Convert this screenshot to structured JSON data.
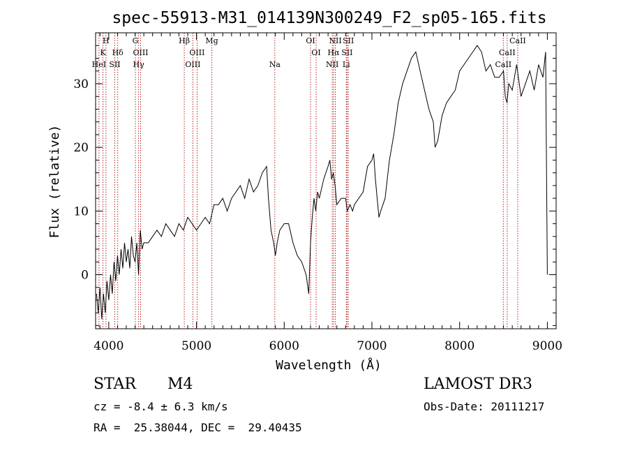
{
  "chart_data": {
    "type": "line",
    "title": "spec-55913-M31_014139N300249_F2_sp05-165.fits",
    "xlabel": "Wavelength (Å)",
    "ylabel": "Flux (relative)",
    "xlim": [
      3850,
      9100
    ],
    "ylim": [
      -8.5,
      38
    ],
    "xticks": [
      4000,
      5000,
      6000,
      7000,
      8000,
      9000
    ],
    "yticks": [
      0,
      10,
      20,
      30
    ],
    "grid": false,
    "line_color": "#000000",
    "marker_color": "#b22222",
    "series": [
      {
        "x": [
          3860,
          3880,
          3900,
          3920,
          3940,
          3960,
          3980,
          4000,
          4020,
          4040,
          4060,
          4080,
          4100,
          4120,
          4140,
          4160,
          4180,
          4200,
          4220,
          4240,
          4260,
          4280,
          4300,
          4320,
          4340,
          4360,
          4380,
          4400,
          4450,
          4500,
          4550,
          4600,
          4650,
          4700,
          4750,
          4800,
          4850,
          4900,
          4950,
          5000,
          5050,
          5100,
          5150,
          5200,
          5250,
          5300,
          5350,
          5400,
          5450,
          5500,
          5550,
          5600,
          5650,
          5700,
          5750,
          5800,
          5820,
          5850,
          5880,
          5900,
          5920,
          5950,
          6000,
          6050,
          6100,
          6150,
          6200,
          6250,
          6280,
          6300,
          6320,
          6340,
          6360,
          6380,
          6400,
          6450,
          6500,
          6520,
          6540,
          6560,
          6580,
          6600,
          6650,
          6700,
          6720,
          6750,
          6780,
          6800,
          6850,
          6900,
          6950,
          7000,
          7020,
          7040,
          7060,
          7080,
          7100,
          7150,
          7200,
          7250,
          7300,
          7350,
          7400,
          7450,
          7500,
          7550,
          7600,
          7650,
          7700,
          7720,
          7750,
          7800,
          7850,
          7900,
          7950,
          8000,
          8050,
          8100,
          8150,
          8200,
          8250,
          8300,
          8350,
          8400,
          8450,
          8500,
          8520,
          8540,
          8560,
          8600,
          8650,
          8700,
          8750,
          8800,
          8850,
          8900,
          8950,
          8980,
          9000
        ],
        "y": [
          -3,
          -6,
          -2,
          -7,
          -3,
          -6,
          -1,
          -4,
          0,
          -3,
          2,
          -1,
          3,
          0,
          4,
          1,
          5,
          2,
          4,
          1,
          6,
          3,
          2,
          5,
          0,
          7,
          4,
          5,
          5,
          6,
          7,
          6,
          8,
          7,
          6,
          8,
          7,
          9,
          8,
          7,
          8,
          9,
          8,
          11,
          11,
          12,
          10,
          12,
          13,
          14,
          12,
          15,
          13,
          14,
          16,
          17,
          12,
          7,
          5,
          3,
          5,
          7,
          8,
          8,
          5,
          3,
          2,
          0,
          -3,
          5,
          9,
          12,
          10,
          13,
          12,
          15,
          17,
          18,
          15,
          16,
          14,
          11,
          12,
          12,
          10,
          11,
          10,
          11,
          12,
          13,
          17,
          18,
          19,
          15,
          12,
          9,
          10,
          12,
          18,
          22,
          27,
          30,
          32,
          34,
          35,
          32,
          29,
          26,
          24,
          20,
          21,
          25,
          27,
          28,
          29,
          32,
          33,
          34,
          35,
          36,
          35,
          32,
          33,
          31,
          31,
          32,
          28,
          27,
          30,
          29,
          33,
          28,
          30,
          32,
          29,
          33,
          31,
          35,
          0
        ]
      }
    ],
    "line_markers": [
      {
        "x": 3889,
        "row": 3,
        "label": "HeI"
      },
      {
        "x": 3934,
        "row": 2,
        "label": "K"
      },
      {
        "x": 3968,
        "row": 1,
        "label": "H"
      },
      {
        "x": 4069,
        "row": 3,
        "label": "SII"
      },
      {
        "x": 4102,
        "row": 2,
        "label": "Hδ"
      },
      {
        "x": 4304,
        "row": 1,
        "label": "G"
      },
      {
        "x": 4340,
        "row": 3,
        "label": "Hγ"
      },
      {
        "x": 4363,
        "row": 2,
        "label": "OIII"
      },
      {
        "x": 4861,
        "row": 1,
        "label": "Hβ"
      },
      {
        "x": 4959,
        "row": 3,
        "label": "OIII"
      },
      {
        "x": 5007,
        "row": 2,
        "label": "OIII"
      },
      {
        "x": 5175,
        "row": 1,
        "label": "Mg"
      },
      {
        "x": 5893,
        "row": 3,
        "label": "Na"
      },
      {
        "x": 6300,
        "row": 1,
        "label": "OI"
      },
      {
        "x": 6364,
        "row": 2,
        "label": "OI"
      },
      {
        "x": 6548,
        "row": 3,
        "label": "NII"
      },
      {
        "x": 6563,
        "row": 2,
        "label": "Hα"
      },
      {
        "x": 6583,
        "row": 1,
        "label": "NII"
      },
      {
        "x": 6708,
        "row": 3,
        "label": "Li"
      },
      {
        "x": 6717,
        "row": 2,
        "label": "SII"
      },
      {
        "x": 6731,
        "row": 1,
        "label": "SII"
      },
      {
        "x": 8498,
        "row": 3,
        "label": "CaII"
      },
      {
        "x": 8542,
        "row": 2,
        "label": "CaII"
      },
      {
        "x": 8662,
        "row": 1,
        "label": "CaII"
      }
    ]
  },
  "info": {
    "class_label": "STAR",
    "subclass": "M4",
    "survey": "LAMOST DR3",
    "cz": "cz = -8.4 ± 6.3 km/s",
    "obs_date": "Obs-Date: 20111217",
    "coords": "RA =  25.38044, DEC =  29.40435"
  }
}
